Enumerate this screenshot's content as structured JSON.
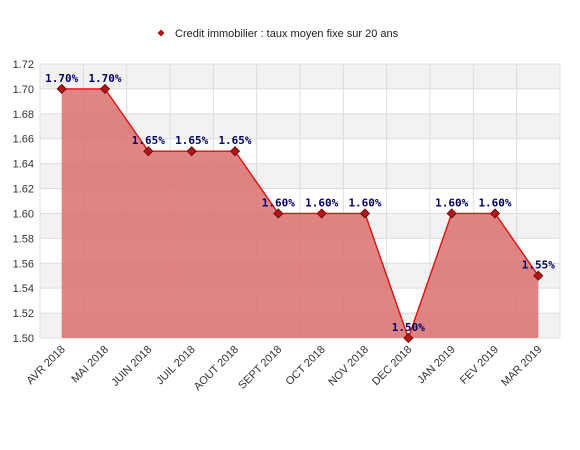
{
  "chart_data": {
    "type": "area",
    "title": "",
    "xlabel": "",
    "ylabel": "",
    "legend": {
      "position": "top",
      "entries": [
        "Credit immobilier : taux moyen fixe sur 20 ans"
      ]
    },
    "categories": [
      "AVR 2018",
      "MAI 2018",
      "JUIN 2018",
      "JUIL 2018",
      "AOUT 2018",
      "SEPT 2018",
      "OCT 2018",
      "NOV 2018",
      "DEC 2018",
      "JAN 2019",
      "FEV 2019",
      "MAR 2019"
    ],
    "series": [
      {
        "name": "Credit immobilier : taux moyen fixe sur 20 ans",
        "values": [
          1.7,
          1.7,
          1.65,
          1.65,
          1.65,
          1.6,
          1.6,
          1.6,
          1.5,
          1.6,
          1.6,
          1.55
        ],
        "data_labels": [
          "1.70%",
          "1.70%",
          "1.65%",
          "1.65%",
          "1.65%",
          "1.60%",
          "1.60%",
          "1.60%",
          "1.50%",
          "1.60%",
          "1.60%",
          "1.55%"
        ]
      }
    ],
    "ylim": [
      1.5,
      1.72
    ],
    "yticks": [
      "1.50",
      "1.52",
      "1.54",
      "1.56",
      "1.58",
      "1.60",
      "1.62",
      "1.64",
      "1.66",
      "1.68",
      "1.70",
      "1.72"
    ],
    "grid": true,
    "colors": {
      "fill": "#dc6e6e",
      "line": "#e01010",
      "marker": "#b01818",
      "band": "#f2f2f2",
      "grid": "#dddddd",
      "label": "#000066"
    }
  }
}
